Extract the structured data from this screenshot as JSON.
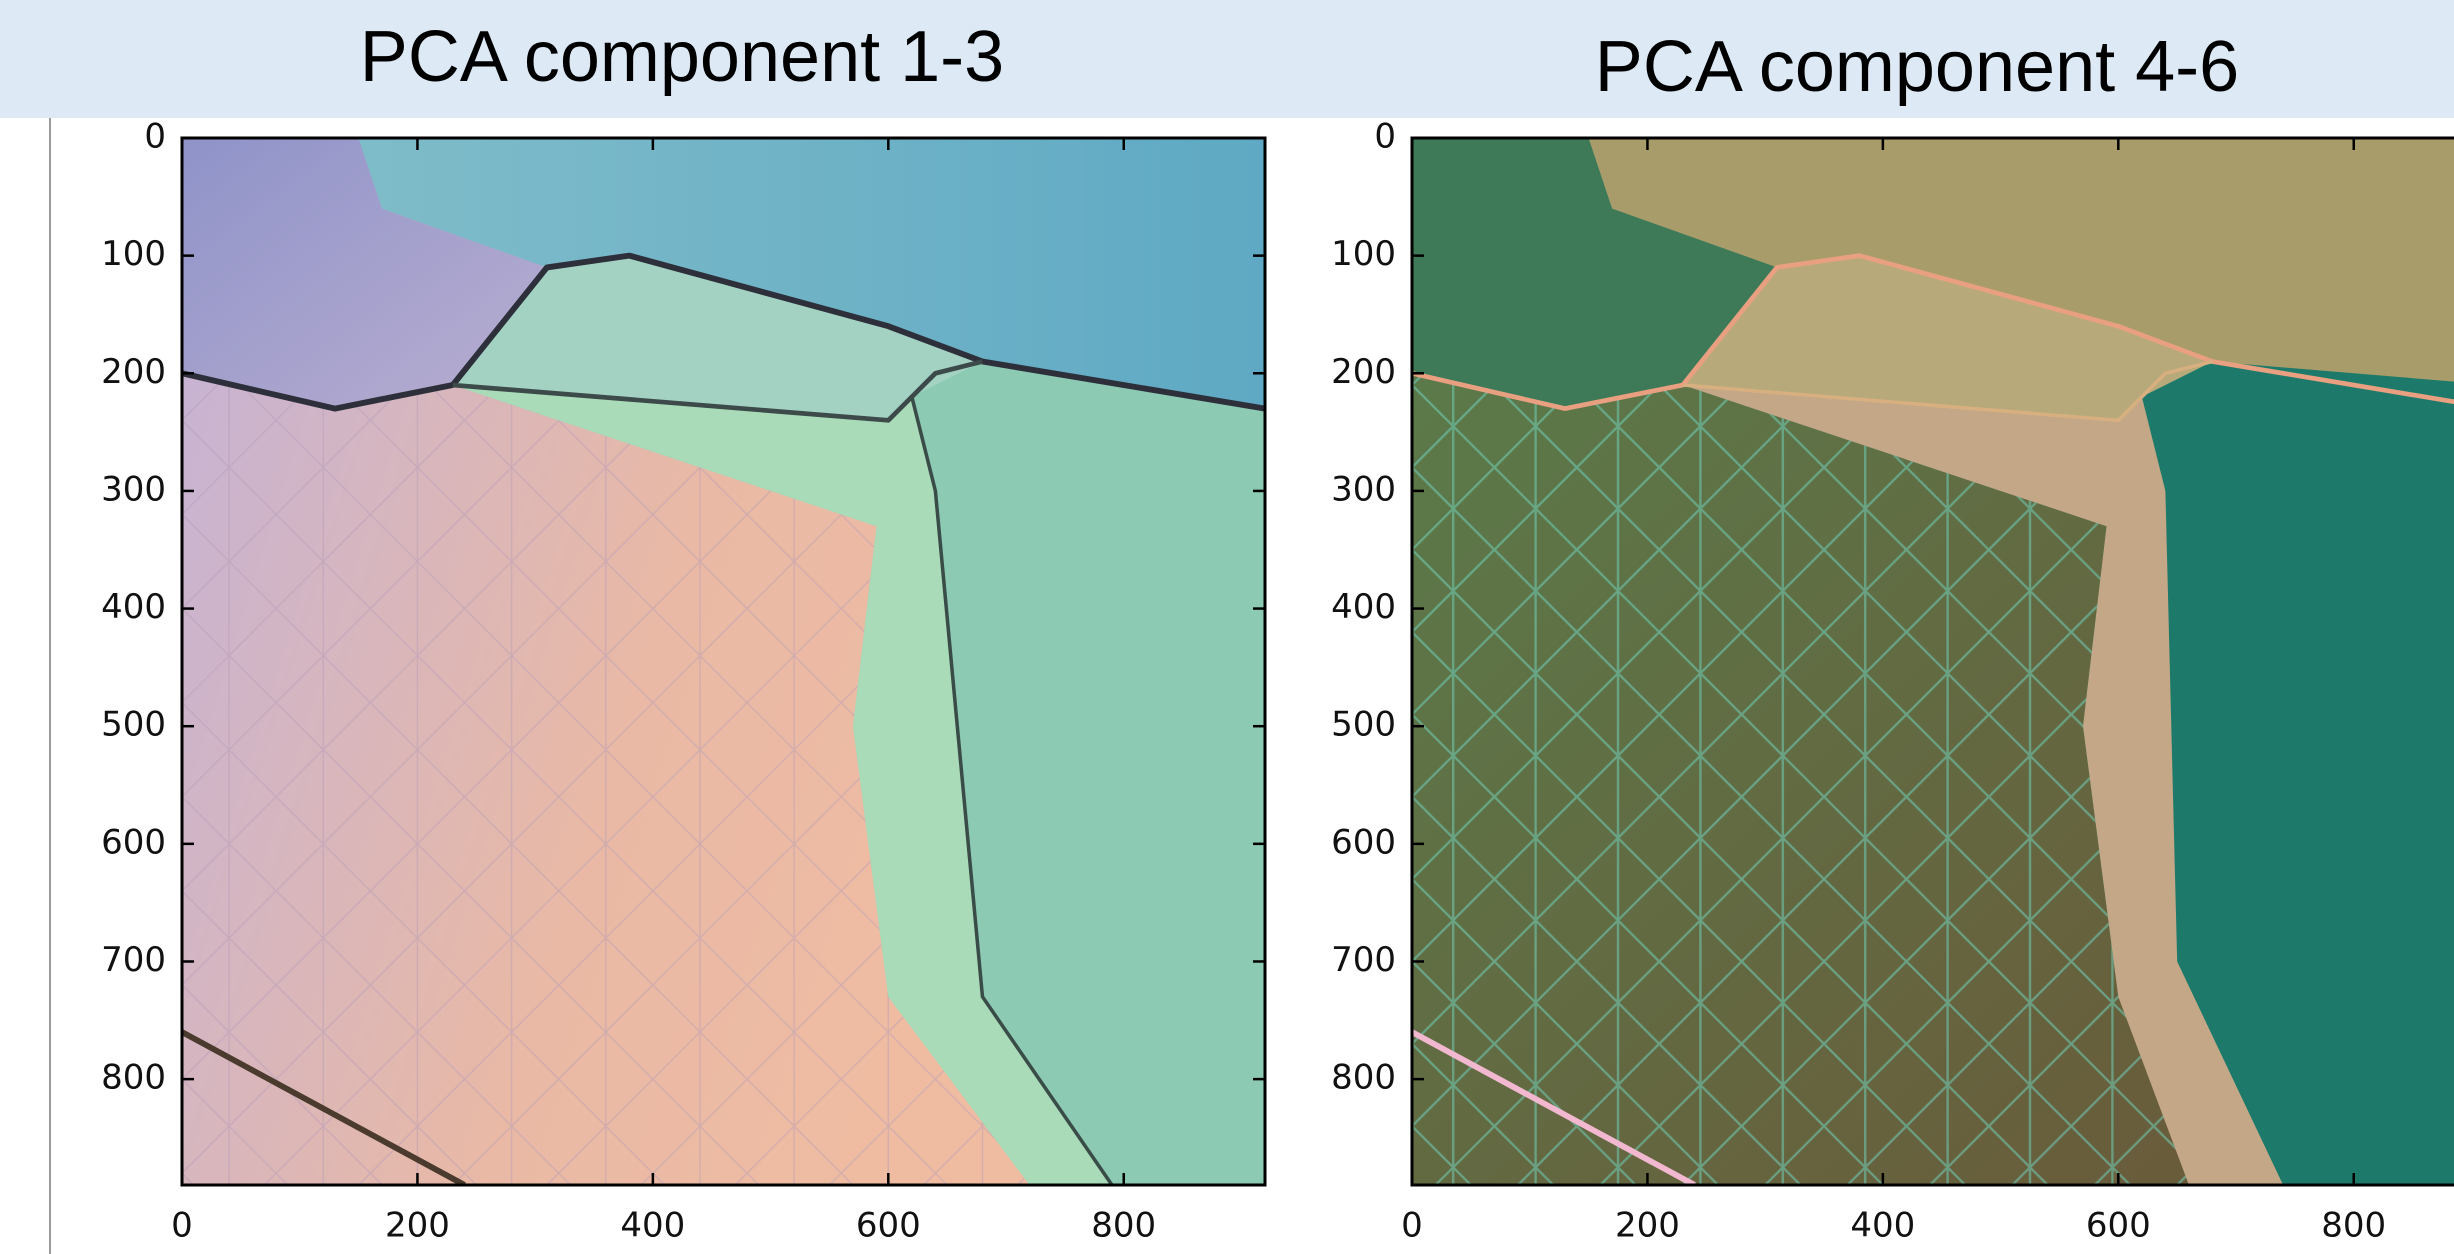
{
  "chart_data": [
    {
      "type": "image",
      "title": "PCA component 1-3",
      "xlim": [
        0,
        920
      ],
      "ylim": [
        890,
        0
      ],
      "xticks": [
        0,
        200,
        400,
        600,
        800
      ],
      "yticks": [
        0,
        100,
        200,
        300,
        400,
        500,
        600,
        700,
        800
      ]
    },
    {
      "type": "image",
      "title": "PCA component 4-6",
      "xlim": [
        0,
        920
      ],
      "ylim": [
        890,
        0
      ],
      "xticks": [
        0,
        200,
        400,
        600,
        800
      ],
      "yticks": [
        0,
        100,
        200,
        300,
        400,
        500,
        600,
        700,
        800
      ]
    }
  ]
}
